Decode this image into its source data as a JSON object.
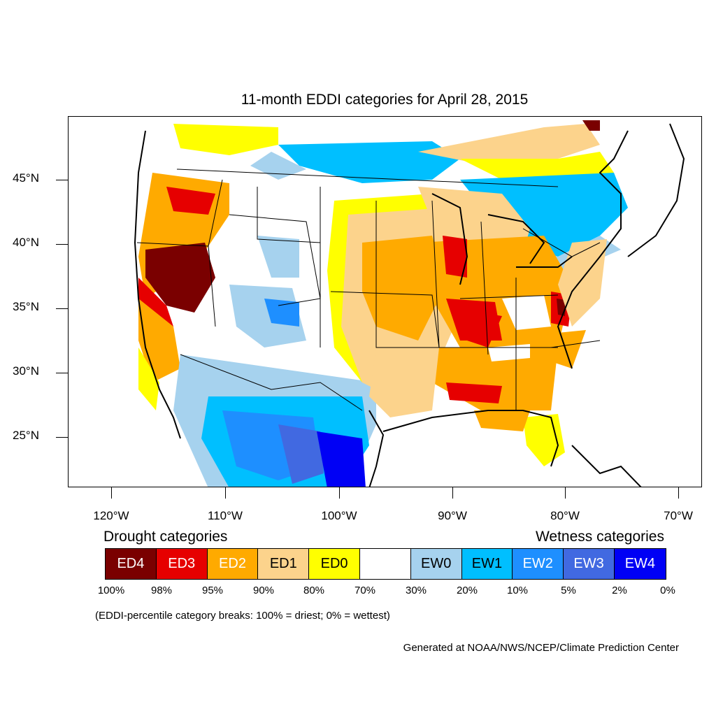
{
  "title": "11-month EDDI categories for April 28, 2015",
  "axes": {
    "y_labels": [
      "45°N",
      "40°N",
      "35°N",
      "30°N",
      "25°N"
    ],
    "x_labels": [
      "120°W",
      "110°W",
      "100°W",
      "90°W",
      "80°W",
      "70°W"
    ]
  },
  "legend": {
    "left_title": "Drought categories",
    "right_title": "Wetness categories",
    "categories": [
      {
        "label": "ED4",
        "color": "#7a0000",
        "text_color": "#ffffff"
      },
      {
        "label": "ED3",
        "color": "#e60000",
        "text_color": "#ffffff"
      },
      {
        "label": "ED2",
        "color": "#ffaa00",
        "text_color": "#ffffff"
      },
      {
        "label": "ED1",
        "color": "#fcd38c",
        "text_color": "#000000"
      },
      {
        "label": "ED0",
        "color": "#ffff00",
        "text_color": "#000000"
      },
      {
        "label": "",
        "color": "#ffffff",
        "text_color": "#000000"
      },
      {
        "label": "EW0",
        "color": "#a6d2ee",
        "text_color": "#000000"
      },
      {
        "label": "EW1",
        "color": "#00bfff",
        "text_color": "#000000"
      },
      {
        "label": "EW2",
        "color": "#1e8fff",
        "text_color": "#ffffff"
      },
      {
        "label": "EW3",
        "color": "#4169e1",
        "text_color": "#ffffff"
      },
      {
        "label": "EW4",
        "color": "#0000f5",
        "text_color": "#ffffff"
      }
    ],
    "breaks": [
      "100%",
      "98%",
      "95%",
      "90%",
      "80%",
      "70%",
      "30%",
      "20%",
      "10%",
      "5%",
      "2%",
      "0%"
    ]
  },
  "footnote": "(EDDI-percentile category breaks: 100% = driest; 0% = wettest)",
  "credit": "Generated at NOAA/NWS/NCEP/Climate Prediction Center"
}
